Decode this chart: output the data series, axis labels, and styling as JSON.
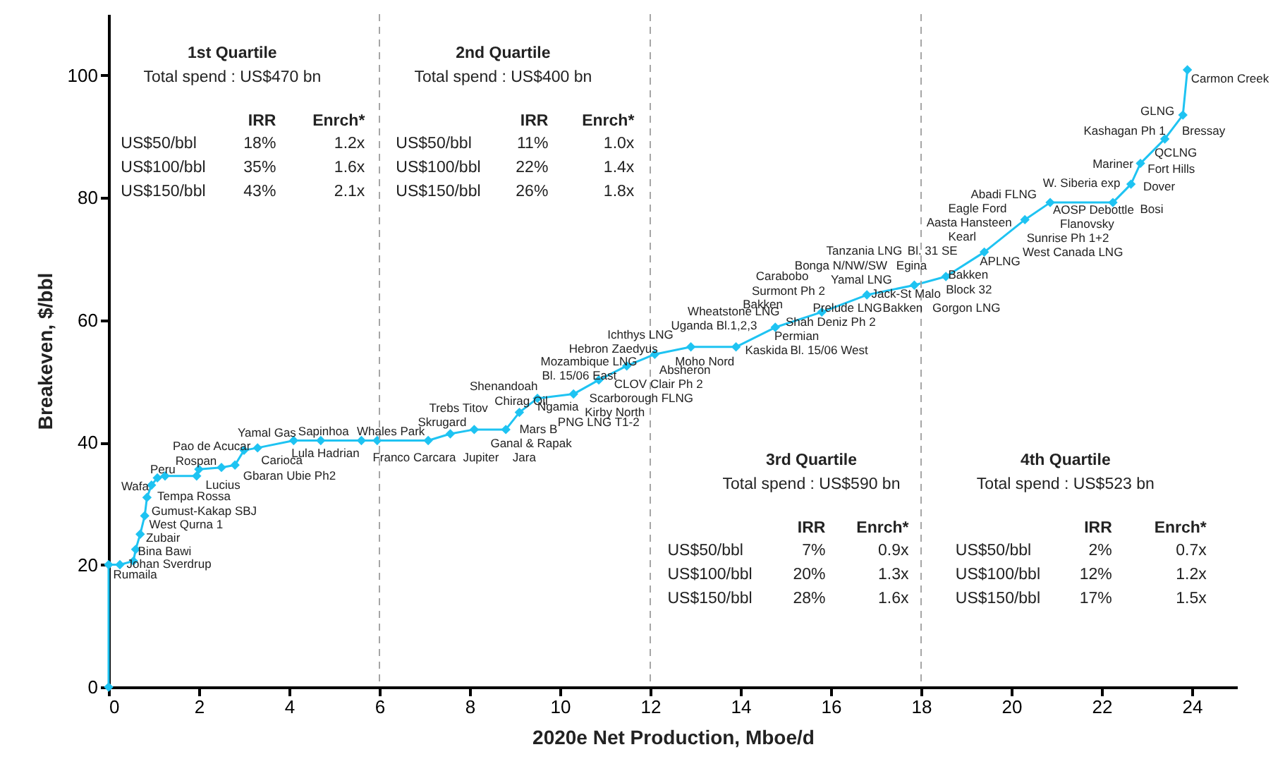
{
  "chart_data": {
    "type": "line",
    "xlabel": "2020e Net Production, Mboe/d",
    "ylabel": "Breakeven, $/bbl",
    "xlim": [
      0,
      25
    ],
    "xticks": [
      0,
      2,
      4,
      6,
      8,
      10,
      12,
      14,
      16,
      18,
      20,
      22,
      24
    ],
    "ylim": [
      0,
      110
    ],
    "yticks": [
      0,
      20,
      40,
      60,
      80,
      100
    ],
    "marker": "diamond",
    "x": [
      0,
      0,
      0.25,
      0.55,
      0.6,
      0.7,
      0.8,
      0.85,
      0.95,
      1.08,
      1.25,
      1.95,
      2.0,
      2.5,
      2.8,
      3.0,
      3.3,
      4.1,
      4.7,
      5.6,
      5.95,
      7.08,
      7.57,
      8.1,
      8.8,
      9.1,
      9.5,
      10.3,
      10.86,
      11.48,
      12.1,
      12.9,
      13.9,
      14.77,
      15.8,
      16.8,
      17.85,
      18.55,
      19.4,
      20.3,
      20.86,
      22.25,
      22.65,
      22.86,
      23.4,
      23.8,
      23.9
    ],
    "series": [
      {
        "color": "#1ec3f2",
        "values": [
          0,
          20,
          20,
          20.6,
          22.5,
          25,
          28,
          31,
          33,
          34.2,
          34.5,
          34.5,
          35.6,
          35.9,
          36.3,
          38.7,
          39.1,
          40.3,
          40.3,
          40.3,
          40.3,
          40.3,
          41.4,
          42.1,
          42.1,
          44.9,
          47.2,
          47.9,
          50.2,
          52.5,
          54.4,
          55.6,
          55.6,
          58.8,
          61.3,
          64.1,
          65.7,
          67.1,
          71.1,
          76.4,
          79.2,
          79.2,
          82.2,
          85.6,
          89.6,
          93.5,
          100.9
        ]
      }
    ],
    "ref_lines": [
      {
        "axis": "x",
        "value": 6,
        "color": "#a6a6a6",
        "line_style": "dashed"
      },
      {
        "axis": "x",
        "value": 12,
        "color": "#a6a6a6",
        "line_style": "dashed"
      },
      {
        "axis": "x",
        "value": 18,
        "color": "#a6a6a6",
        "line_style": "dashed"
      }
    ],
    "annotations": [
      "1st Quartile",
      "Total spend : US$470 bn",
      "IRR",
      "Enrch*",
      "US$50/bbl",
      "18%",
      "1.2x",
      "US$100/bbl",
      "35%",
      "1.6x",
      "US$150/bbl",
      "43%",
      "2.1x",
      "2nd Quartile",
      "Total spend : US$400 bn",
      "IRR",
      "Enrch*",
      "US$50/bbl",
      "11%",
      "1.0x",
      "US$100/bbl",
      "22%",
      "1.4x",
      "US$150/bbl",
      "26%",
      "1.8x",
      "3rd Quartile",
      "Total spend : US$590 bn",
      "IRR",
      "Enrch*",
      "US$50/bbl",
      "7%",
      "0.9x",
      "US$100/bbl",
      "20%",
      "1.3x",
      "US$150/bbl",
      "28%",
      "1.6x",
      "4th Quartile",
      "Total spend : US$523 bn",
      "IRR",
      "Enrch*",
      "US$50/bbl",
      "2%",
      "0.7x",
      "US$100/bbl",
      "12%",
      "1.2x",
      "US$150/bbl",
      "17%",
      "1.5x",
      "Rumaila",
      "Johan Sverdrup",
      "Bina Bawi",
      "Zubair",
      "West Qurna 1",
      "Gumust-Kakap SBJ",
      "Tempa Rossa",
      "Wafa",
      "Peru",
      "Lucius",
      "Rospan",
      "Pao de Acucar",
      "Gbaran Ubie Ph2",
      "Carioca",
      "Yamal Gas",
      "Sapinhoa",
      "Lula Hadrian",
      "Whales Park",
      "Franco",
      "Carcara",
      "Jupiter",
      "Skrugard",
      "Trebs Titov",
      "Jara",
      "Ganal & Rapak",
      "Mars B",
      "PNG LNG T1-2",
      "Ngamia",
      "Kirby North",
      "Scarborough FLNG",
      "CLOV",
      "Clair Ph 2",
      "Chirag Oil",
      "Shenandoah",
      "Bl. 15/06 East",
      "Mozambique LNG",
      "Hebron",
      "Zaedyus",
      "Ichthys LNG",
      "Absheron",
      "Moho Nord",
      "Uganda Bl.1,2,3",
      "Wheatstone LNG",
      "Kaskida",
      "Bl. 15/06 West",
      "Permian",
      "Bakken",
      "Shah Deniz Ph 2",
      "Prelude LNG",
      "Surmont Ph 2",
      "Carabobo",
      "Yamal LNG",
      "Bonga N/NW/SW",
      "Bakken",
      "Jack-St Malo",
      "Tanzania LNG",
      "Egina",
      "Bl. 31 SE",
      "Gorgon LNG",
      "Block 32",
      "Bakken",
      "Kearl",
      "APLNG",
      "Aasta Hansteen",
      "Eagle Ford",
      "Abadi FLNG",
      "West Canada LNG",
      "Sunrise Ph 1+2",
      "Flanovsky",
      "AOSP Debottle",
      "W. Siberia exp",
      "Bosi",
      "Dover",
      "Mariner",
      "Fort Hills",
      "QCLNG",
      "Kashagan Ph 1",
      "Bressay",
      "GLNG",
      "Carmon Creek"
    ]
  }
}
